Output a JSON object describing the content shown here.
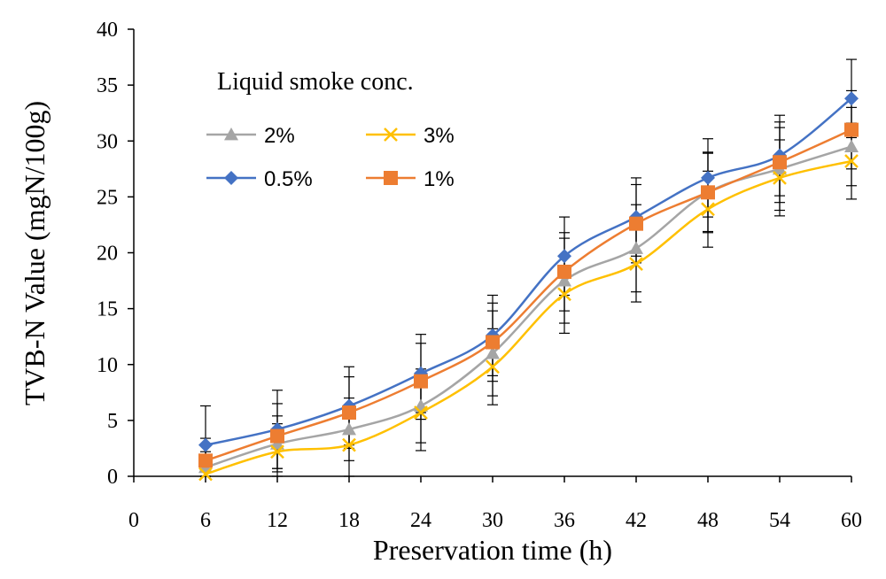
{
  "chart_data": {
    "type": "line",
    "xlabel": "Preservation time (h)",
    "ylabel": "TVB-N Value (mgN/100g)",
    "xlim": [
      0,
      60
    ],
    "ylim": [
      0,
      40
    ],
    "x_ticks": [
      "0",
      "6",
      "12",
      "18",
      "24",
      "30",
      "36",
      "42",
      "48",
      "54",
      "60"
    ],
    "y_ticks": [
      "0",
      "5",
      "10",
      "15",
      "20",
      "25",
      "30",
      "35",
      "40"
    ],
    "grid": false,
    "legend_title": "Liquid smoke  conc.",
    "legend_position": "top-left",
    "x": [
      6,
      12,
      18,
      24,
      30,
      36,
      42,
      48,
      54,
      60
    ],
    "series": [
      {
        "name": "2%",
        "color": "#a5a5a5",
        "marker": "triangle",
        "values": [
          0.8,
          2.9,
          4.2,
          6.3,
          11.0,
          17.5,
          20.4,
          25.4,
          27.5,
          29.5
        ],
        "errors": [
          2.0,
          2.5,
          2.8,
          3.3,
          3.8,
          3.8,
          3.9,
          3.6,
          3.7,
          3.5
        ]
      },
      {
        "name": "3%",
        "color": "#ffc000",
        "marker": "x",
        "values": [
          0.2,
          2.2,
          2.8,
          5.7,
          9.8,
          16.3,
          19.0,
          23.9,
          26.7,
          28.2
        ],
        "errors": [
          2.0,
          2.5,
          2.8,
          3.4,
          3.4,
          3.5,
          3.4,
          3.4,
          3.4,
          3.4
        ]
      },
      {
        "name": "0.5%",
        "color": "#4472c4",
        "marker": "diamond",
        "values": [
          2.8,
          4.2,
          6.3,
          9.2,
          12.6,
          19.7,
          23.2,
          26.7,
          28.7,
          33.8
        ],
        "errors": [
          3.5,
          3.5,
          3.5,
          3.5,
          3.6,
          3.5,
          3.5,
          3.5,
          3.6,
          3.5
        ]
      },
      {
        "name": "1%",
        "color": "#ed7d31",
        "marker": "square",
        "values": [
          1.4,
          3.6,
          5.7,
          8.5,
          12.0,
          18.3,
          22.6,
          25.4,
          28.1,
          31.0
        ],
        "errors": [
          2.0,
          2.9,
          3.2,
          3.4,
          3.5,
          3.5,
          3.5,
          3.5,
          3.6,
          3.5
        ]
      }
    ]
  }
}
